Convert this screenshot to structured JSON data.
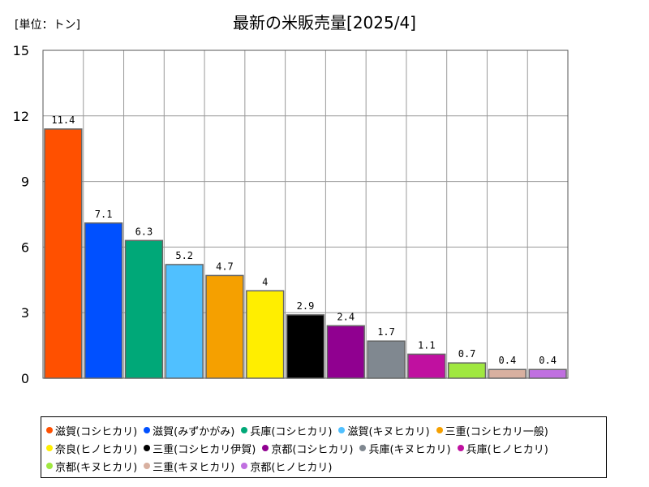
{
  "header": {
    "unit": "[単位：トン]",
    "title": "最新の米販売量[2025/4]"
  },
  "chart_data": {
    "type": "bar",
    "title": "最新の米販売量[2025/4]",
    "unit": "[単位：トン]",
    "ylim": [
      0,
      15
    ],
    "yticks": [
      0,
      3,
      6,
      9,
      12,
      15
    ],
    "grid": true,
    "legend_position": "bottom",
    "categories": [
      "滋賀(コシヒカリ)",
      "滋賀(みずかがみ)",
      "兵庫(コシヒカリ)",
      "滋賀(キヌヒカリ)",
      "三重(コシヒカリ一般)",
      "奈良(ヒノヒカリ)",
      "三重(コシヒカリ伊賀)",
      "京都(コシヒカリ)",
      "兵庫(キヌヒカリ)",
      "兵庫(ヒノヒカリ)",
      "京都(キヌヒカリ)",
      "三重(キヌヒカリ)",
      "京都(ヒノヒカリ)"
    ],
    "values": [
      11.4,
      7.1,
      6.3,
      5.2,
      4.7,
      4,
      2.9,
      2.4,
      1.7,
      1.1,
      0.7,
      0.4,
      0.4
    ],
    "value_labels": [
      "11.4",
      "7.1",
      "6.3",
      "5.2",
      "4.7",
      "4",
      "2.9",
      "2.4",
      "1.7",
      "1.1",
      "0.7",
      "0.4",
      "0.4"
    ],
    "colors": [
      "#ff5000",
      "#0050ff",
      "#00a878",
      "#50c0ff",
      "#f5a000",
      "#ffee00",
      "#000000",
      "#900090",
      "#808890",
      "#c010a0",
      "#a0e840",
      "#d8b0a0",
      "#c070e0"
    ]
  },
  "legend": {
    "rows": [
      [
        0,
        1,
        2,
        3,
        4
      ],
      [
        5,
        6,
        7,
        8,
        9
      ],
      [
        10,
        11,
        12
      ]
    ]
  }
}
